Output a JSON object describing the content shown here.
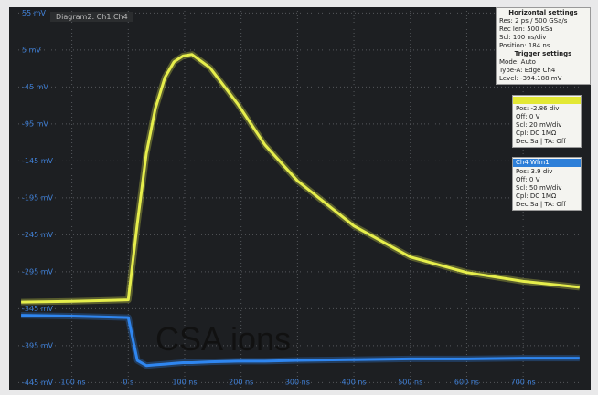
{
  "tab": "Diagram2: Ch1,Ch4",
  "chart_data": {
    "type": "line",
    "annotation": "CSA ions",
    "x": [
      -190,
      -100,
      0,
      16,
      32,
      48,
      65,
      81,
      97,
      113,
      145,
      194,
      242,
      300,
      400,
      500,
      600,
      700,
      800
    ],
    "series": [
      {
        "color": "#e6ee4c",
        "values": [
          -336,
          -335,
          -333,
          -230,
          -135,
          -74,
          -32,
          -11,
          -3,
          -1,
          -19,
          -68,
          -123,
          -172,
          -233,
          -275,
          -296,
          -308,
          -316
        ]
      },
      {
        "color": "#2f86f0",
        "values": [
          -354,
          -355,
          -357,
          -415,
          -422,
          -421,
          -420,
          -419,
          -418,
          -418,
          -417,
          -416,
          -416,
          -415,
          -414,
          -413,
          -413,
          -412,
          -412
        ]
      }
    ],
    "xlim": [
      -195,
      810
    ],
    "ylim": [
      -452,
      58
    ],
    "xticks": [
      {
        "value": -100,
        "label": "-100 ns"
      },
      {
        "value": 0,
        "label": "0 s"
      },
      {
        "value": 100,
        "label": "100 ns"
      },
      {
        "value": 200,
        "label": "200 ns"
      },
      {
        "value": 300,
        "label": "300 ns"
      },
      {
        "value": 400,
        "label": "400 ns"
      },
      {
        "value": 500,
        "label": "500 ns"
      },
      {
        "value": 600,
        "label": "600 ns"
      },
      {
        "value": 700,
        "label": "700 ns"
      }
    ],
    "yticks": [
      {
        "value": 55,
        "label": "55 mV"
      },
      {
        "value": 5,
        "label": "5 mV"
      },
      {
        "value": -45,
        "label": "-45 mV"
      },
      {
        "value": -95,
        "label": "-95 mV"
      },
      {
        "value": -145,
        "label": "-145 mV"
      },
      {
        "value": -195,
        "label": "-195 mV"
      },
      {
        "value": -245,
        "label": "-245 mV"
      },
      {
        "value": -295,
        "label": "-295 mV"
      },
      {
        "value": -345,
        "label": "-345 mV"
      },
      {
        "value": -395,
        "label": "-395 mV"
      },
      {
        "value": -445,
        "label": "-445 mV"
      }
    ],
    "grid": true
  },
  "panels": [
    {
      "title": "Horizontal settings",
      "lines": [
        "Res: 2 ps / 500 GSa/s",
        "Rec len: 500 kSa",
        "Scl: 100 ns/div",
        "Position: 184 ns"
      ],
      "subtitle": "Trigger settings",
      "sublines": [
        "Mode: Auto",
        "Type-A: Edge Ch4",
        "Level: -394.188 mV"
      ]
    },
    {
      "lines": [
        "Pos: -2.86 div",
        "Off: 0 V",
        "Scl: 20 mV/div",
        "Cpl: DC 1MΩ",
        "Dec:Sa | TA: Off"
      ]
    },
    {
      "title": "Ch4 Wfm1",
      "lines": [
        "Pos: 3.9 div",
        "Off: 0 V",
        "Scl: 50 mV/div",
        "Cpl: DC 1MΩ",
        "Dec:Sa | TA: Off"
      ]
    }
  ]
}
